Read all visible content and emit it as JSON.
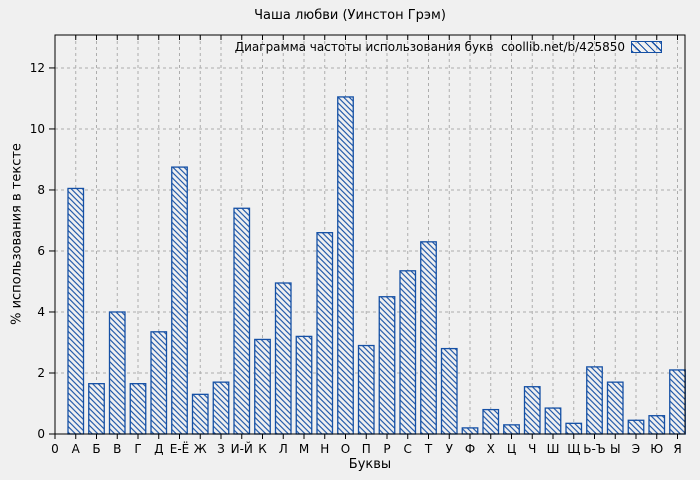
{
  "chart_data": {
    "type": "bar",
    "title": "Чаша любви (Уинстон Грэм)",
    "legend_label": "Диаграмма частоты использования букв  coollib.net/b/425850",
    "xlabel": "Буквы",
    "ylabel": "% использования в тексте",
    "origin_label": "0",
    "categories": [
      "А",
      "Б",
      "В",
      "Г",
      "Д",
      "Е-Ё",
      "Ж",
      "З",
      "И-Й",
      "К",
      "Л",
      "М",
      "Н",
      "О",
      "П",
      "Р",
      "С",
      "Т",
      "У",
      "Ф",
      "Х",
      "Ц",
      "Ч",
      "Ш",
      "Щ",
      "Ь-Ъ",
      "Ы",
      "Э",
      "Ю",
      "Я"
    ],
    "values": [
      8.05,
      1.65,
      4.0,
      1.65,
      3.35,
      8.75,
      1.3,
      1.7,
      7.4,
      3.1,
      4.95,
      3.2,
      6.6,
      11.05,
      2.9,
      4.5,
      5.35,
      6.3,
      2.8,
      0.2,
      0.8,
      0.3,
      1.55,
      0.85,
      0.35,
      2.2,
      1.7,
      0.45,
      0.6,
      2.1
    ],
    "yticks": [
      0,
      2,
      4,
      6,
      8,
      10,
      12
    ],
    "ylim": [
      0,
      13.08
    ],
    "grid": true,
    "legend_position": "top-right-inside",
    "bar_color": "#1550a5",
    "hatch_style": "backslash-diagonal",
    "colors": {
      "background": "#f0f0f0",
      "grid": "#adadad",
      "frame": "#000000",
      "text": "#000000"
    }
  }
}
